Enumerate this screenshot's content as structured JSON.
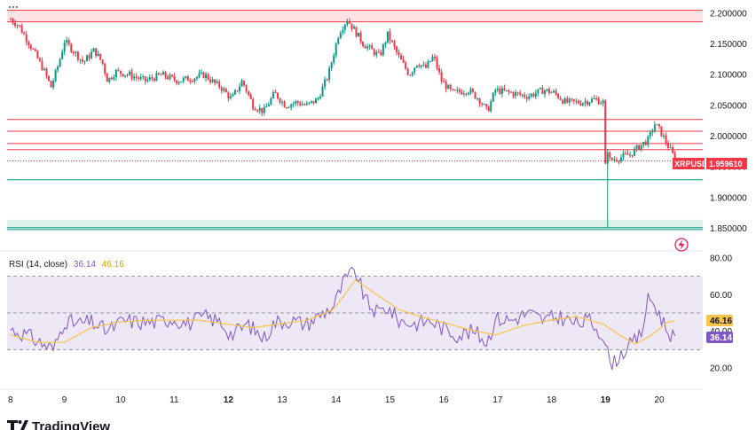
{
  "brand": {
    "name": "TradingView",
    "logo": "tradingview-logo-icon"
  },
  "colors": {
    "up": "#089981",
    "down": "#f23645",
    "rsi_line": "#7e57c2",
    "rsi_ma": "#f7c548",
    "rsi_band": "#ede7f6"
  },
  "price_tag": {
    "symbol": "XRPUSD",
    "value": "1.959610"
  },
  "rsi_header": {
    "label": "RSI (14, close)",
    "rsi": "36.14",
    "ma": "46.16"
  },
  "rsi_tags": {
    "ma": "46.16",
    "rsi": "36.14"
  },
  "menu_icon": "dots-icon",
  "flash_icon": "lightning-icon",
  "chart_data": [
    {
      "type": "candlestick",
      "title": "",
      "symbol": "XRPUSD",
      "x_ticks": [
        "8",
        "9",
        "10",
        "11",
        "12",
        "13",
        "14",
        "15",
        "16",
        "17",
        "18",
        "19",
        "20"
      ],
      "y_ticks": [
        "2.200000",
        "2.150000",
        "2.100000",
        "2.050000",
        "2.000000",
        "1.950000",
        "1.900000",
        "1.850000"
      ],
      "ylim": [
        1.842,
        2.21
      ],
      "last_price": 1.95961,
      "path": [
        [
          8.0,
          2.19
        ],
        [
          8.15,
          2.18
        ],
        [
          8.35,
          2.15
        ],
        [
          8.6,
          2.11
        ],
        [
          8.75,
          2.08
        ],
        [
          8.9,
          2.12
        ],
        [
          9.0,
          2.155
        ],
        [
          9.15,
          2.14
        ],
        [
          9.35,
          2.12
        ],
        [
          9.55,
          2.14
        ],
        [
          9.7,
          2.12
        ],
        [
          9.8,
          2.09
        ],
        [
          9.95,
          2.105
        ],
        [
          10.2,
          2.1
        ],
        [
          10.5,
          2.09
        ],
        [
          10.8,
          2.1
        ],
        [
          11.1,
          2.09
        ],
        [
          11.4,
          2.095
        ],
        [
          11.6,
          2.1
        ],
        [
          11.8,
          2.085
        ],
        [
          11.9,
          2.08
        ],
        [
          12.1,
          2.06
        ],
        [
          12.3,
          2.09
        ],
        [
          12.5,
          2.05
        ],
        [
          12.7,
          2.04
        ],
        [
          12.9,
          2.07
        ],
        [
          13.1,
          2.05
        ],
        [
          13.3,
          2.055
        ],
        [
          13.5,
          2.05
        ],
        [
          13.7,
          2.06
        ],
        [
          13.9,
          2.1
        ],
        [
          14.1,
          2.17
        ],
        [
          14.25,
          2.19
        ],
        [
          14.4,
          2.17
        ],
        [
          14.55,
          2.15
        ],
        [
          14.7,
          2.14
        ],
        [
          14.85,
          2.13
        ],
        [
          15.0,
          2.165
        ],
        [
          15.2,
          2.13
        ],
        [
          15.4,
          2.1
        ],
        [
          15.55,
          2.12
        ],
        [
          15.7,
          2.11
        ],
        [
          15.85,
          2.13
        ],
        [
          16.0,
          2.09
        ],
        [
          16.2,
          2.07
        ],
        [
          16.5,
          2.075
        ],
        [
          16.7,
          2.06
        ],
        [
          16.85,
          2.04
        ],
        [
          17.0,
          2.075
        ],
        [
          17.3,
          2.07
        ],
        [
          17.6,
          2.065
        ],
        [
          17.9,
          2.075
        ],
        [
          18.1,
          2.07
        ],
        [
          18.3,
          2.055
        ],
        [
          18.6,
          2.055
        ],
        [
          18.85,
          2.06
        ],
        [
          19.0,
          2.055
        ],
        [
          19.05,
          2.015
        ],
        [
          19.1,
          1.96
        ],
        [
          19.3,
          1.965
        ],
        [
          19.5,
          1.97
        ],
        [
          19.7,
          1.985
        ],
        [
          19.85,
          1.995
        ],
        [
          19.95,
          2.02
        ],
        [
          20.05,
          2.01
        ],
        [
          20.2,
          1.985
        ],
        [
          20.35,
          1.96
        ]
      ],
      "horizontal_levels": [
        {
          "value": 2.205,
          "color": "#f23645"
        },
        {
          "value": 2.186,
          "color": "#f23645"
        },
        {
          "value": 2.027,
          "color": "#f23645"
        },
        {
          "value": 2.008,
          "color": "#f23645"
        },
        {
          "value": 1.988,
          "color": "#f23645"
        },
        {
          "value": 1.978,
          "color": "#f23645"
        },
        {
          "value": 1.929,
          "color": "#089981"
        },
        {
          "value": 1.851,
          "color": "#089981"
        },
        {
          "value": 1.848,
          "color": "#089981"
        }
      ],
      "zones": [
        {
          "from": 2.186,
          "to": 2.205,
          "color": "#fde2e4"
        },
        {
          "from": 1.848,
          "to": 1.864,
          "color": "#ddf3ea"
        }
      ]
    },
    {
      "type": "line",
      "title": "RSI (14, close)",
      "y_ticks": [
        "80.00",
        "60.00",
        "40.00",
        "20.00"
      ],
      "ylim": [
        20,
        80
      ],
      "band": [
        30,
        70
      ],
      "mid": 50,
      "rsi_path": [
        [
          8.0,
          41
        ],
        [
          8.3,
          38
        ],
        [
          8.6,
          33
        ],
        [
          8.8,
          30
        ],
        [
          9.0,
          46
        ],
        [
          9.2,
          44
        ],
        [
          9.5,
          45
        ],
        [
          9.8,
          40
        ],
        [
          10.1,
          46
        ],
        [
          10.4,
          45
        ],
        [
          10.7,
          45
        ],
        [
          11.0,
          47
        ],
        [
          11.3,
          44
        ],
        [
          11.6,
          48
        ],
        [
          11.9,
          45
        ],
        [
          12.1,
          38
        ],
        [
          12.4,
          44
        ],
        [
          12.7,
          36
        ],
        [
          12.9,
          45
        ],
        [
          13.2,
          46
        ],
        [
          13.5,
          44
        ],
        [
          13.8,
          50
        ],
        [
          14.0,
          54
        ],
        [
          14.2,
          68
        ],
        [
          14.4,
          73
        ],
        [
          14.6,
          56
        ],
        [
          14.8,
          50
        ],
        [
          15.0,
          53
        ],
        [
          15.2,
          46
        ],
        [
          15.5,
          44
        ],
        [
          15.8,
          46
        ],
        [
          16.0,
          42
        ],
        [
          16.3,
          38
        ],
        [
          16.6,
          40
        ],
        [
          16.85,
          34
        ],
        [
          17.0,
          47
        ],
        [
          17.3,
          46
        ],
        [
          17.6,
          50
        ],
        [
          17.9,
          46
        ],
        [
          18.2,
          48
        ],
        [
          18.5,
          44
        ],
        [
          18.75,
          46
        ],
        [
          19.0,
          38
        ],
        [
          19.15,
          20
        ],
        [
          19.3,
          27
        ],
        [
          19.5,
          32
        ],
        [
          19.7,
          38
        ],
        [
          19.85,
          59
        ],
        [
          20.0,
          52
        ],
        [
          20.2,
          40
        ],
        [
          20.35,
          36
        ]
      ],
      "ma_path": [
        [
          8.0,
          38
        ],
        [
          8.5,
          34
        ],
        [
          9.0,
          34
        ],
        [
          9.5,
          42
        ],
        [
          10.0,
          45
        ],
        [
          10.5,
          46
        ],
        [
          11.0,
          46
        ],
        [
          11.5,
          46
        ],
        [
          12.0,
          44
        ],
        [
          12.5,
          42
        ],
        [
          13.0,
          44
        ],
        [
          13.5,
          46
        ],
        [
          14.0,
          52
        ],
        [
          14.4,
          68
        ],
        [
          14.8,
          60
        ],
        [
          15.2,
          52
        ],
        [
          15.6,
          48
        ],
        [
          16.0,
          45
        ],
        [
          16.5,
          41
        ],
        [
          17.0,
          38
        ],
        [
          17.5,
          43
        ],
        [
          18.0,
          46
        ],
        [
          18.5,
          48
        ],
        [
          19.0,
          44
        ],
        [
          19.3,
          38
        ],
        [
          19.6,
          33
        ],
        [
          19.9,
          38
        ],
        [
          20.2,
          45
        ],
        [
          20.4,
          46
        ]
      ],
      "last_rsi": 36.14,
      "last_ma": 46.16
    }
  ]
}
